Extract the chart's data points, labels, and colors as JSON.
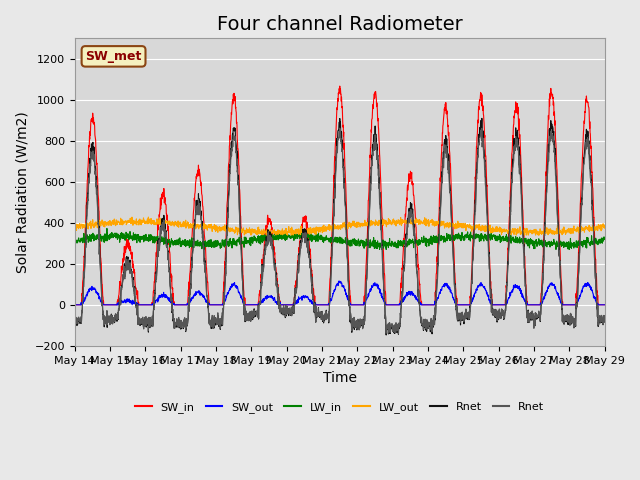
{
  "title": "Four channel Radiometer",
  "xlabel": "Time",
  "ylabel": "Solar Radiation (W/m2)",
  "ylim": [
    -200,
    1300
  ],
  "background_color": "#e8e8e8",
  "plot_bg_color": "#d8d8d8",
  "xtick_labels": [
    "May 14",
    "May 15",
    "May 16",
    "May 17",
    "May 18",
    "May 19",
    "May 20",
    "May 21",
    "May 22",
    "May 23",
    "May 24",
    "May 25",
    "May 26",
    "May 27",
    "May 28",
    "May 29"
  ],
  "annotation_text": "SW_met",
  "annotation_bg": "#f5f0c0",
  "annotation_border": "#8B4513",
  "legend_entries": [
    "SW_in",
    "SW_out",
    "LW_in",
    "LW_out",
    "Rnet",
    "Rnet"
  ],
  "legend_colors": [
    "red",
    "blue",
    "green",
    "orange",
    "#111111",
    "#555555"
  ],
  "title_fontsize": 14,
  "label_fontsize": 10,
  "tick_fontsize": 8,
  "sw_peaks": [
    920,
    300,
    540,
    650,
    1010,
    420,
    420,
    1050,
    1030,
    625,
    960,
    1020,
    970,
    1040,
    1000
  ],
  "sw_out_peaks": [
    80,
    20,
    45,
    60,
    100,
    40,
    40,
    110,
    100,
    60,
    100,
    100,
    90,
    100,
    100
  ],
  "n_days": 15,
  "n_per_day": 144
}
